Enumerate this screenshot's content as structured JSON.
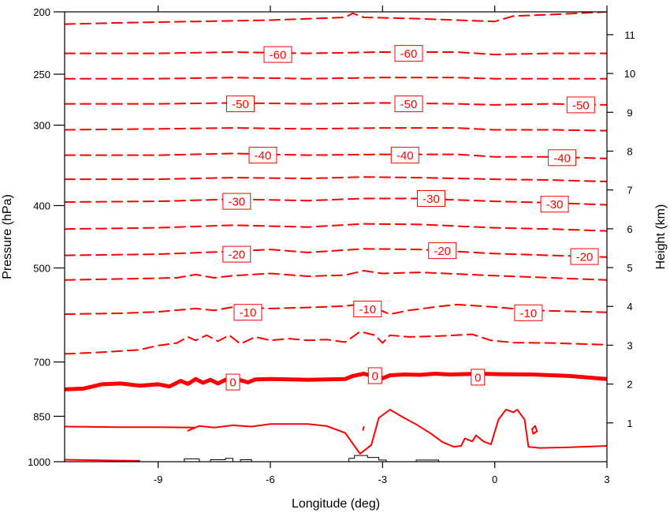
{
  "chart_data": {
    "type": "contour",
    "xlabel": "Longitude (deg)",
    "ylabel_left": "Pressure (hPa)",
    "ylabel_right": "Height (km)",
    "xlim": [
      -11.5,
      3.0
    ],
    "pressure_range": [
      200,
      1000
    ],
    "height_range_km": [
      0,
      12
    ],
    "x_ticks": [
      -9,
      -6,
      -3,
      0,
      3
    ],
    "x_tick_labels": [
      "-9",
      "-6",
      "-3",
      "0",
      "3"
    ],
    "left_ticks": [
      1000,
      850,
      700,
      500,
      400,
      300,
      250,
      200
    ],
    "left_tick_labels": [
      "1000",
      "850",
      "700",
      "500",
      "400",
      "300",
      "250",
      "200"
    ],
    "right_ticks": [
      1,
      2,
      3,
      4,
      5,
      6,
      7,
      8,
      9,
      10,
      11
    ],
    "right_tick_labels": [
      "1",
      "2",
      "3",
      "4",
      "5",
      "6",
      "7",
      "8",
      "9",
      "10",
      "11"
    ],
    "contour_color": "#ff0000",
    "terrain_color": "#000000",
    "contour_labels": [
      {
        "text": "-60",
        "x": -5.8,
        "p": 233
      },
      {
        "text": "-60",
        "x": -2.3,
        "p": 232
      },
      {
        "text": "-50",
        "x": -6.8,
        "p": 278
      },
      {
        "text": "-50",
        "x": -2.3,
        "p": 278
      },
      {
        "text": "-50",
        "x": 2.3,
        "p": 279
      },
      {
        "text": "-40",
        "x": -6.2,
        "p": 334
      },
      {
        "text": "-40",
        "x": -2.4,
        "p": 334
      },
      {
        "text": "-40",
        "x": 1.8,
        "p": 337
      },
      {
        "text": "-30",
        "x": -6.9,
        "p": 394
      },
      {
        "text": "-30",
        "x": -1.7,
        "p": 390
      },
      {
        "text": "-30",
        "x": 1.6,
        "p": 398
      },
      {
        "text": "-20",
        "x": -6.9,
        "p": 476
      },
      {
        "text": "-20",
        "x": -1.4,
        "p": 470
      },
      {
        "text": "-20",
        "x": 2.4,
        "p": 480
      },
      {
        "text": "-10",
        "x": -6.6,
        "p": 586
      },
      {
        "text": "-10",
        "x": -3.4,
        "p": 579
      },
      {
        "text": "-10",
        "x": 0.9,
        "p": 587
      },
      {
        "text": "0",
        "x": -7.0,
        "p": 752
      },
      {
        "text": "0",
        "x": -3.2,
        "p": 735
      },
      {
        "text": "0",
        "x": -0.45,
        "p": 739
      }
    ],
    "contour_lines": [
      {
        "level": -65,
        "style": "dashed",
        "width": 2,
        "points": [
          [
            -11.5,
            209
          ],
          [
            -10,
            208
          ],
          [
            -8,
            207
          ],
          [
            -6,
            206
          ],
          [
            -4,
            204
          ],
          [
            -3.8,
            201
          ],
          [
            -3.5,
            204
          ],
          [
            -2,
            205
          ],
          [
            -1,
            206
          ],
          [
            0,
            207
          ],
          [
            0.5,
            203
          ],
          [
            1.5,
            202
          ],
          [
            3,
            200
          ]
        ]
      },
      {
        "level": -60,
        "style": "dashed",
        "width": 2,
        "points": [
          [
            -11.5,
            232
          ],
          [
            -9,
            232
          ],
          [
            -7,
            231
          ],
          [
            -5,
            232
          ],
          [
            -3,
            231
          ],
          [
            -1,
            231
          ],
          [
            0,
            233
          ],
          [
            1.5,
            232
          ],
          [
            3,
            232
          ]
        ]
      },
      {
        "level": -55,
        "style": "dashed",
        "width": 2,
        "points": [
          [
            -11.5,
            254
          ],
          [
            -9,
            254
          ],
          [
            -7,
            253
          ],
          [
            -5,
            254
          ],
          [
            -3,
            253
          ],
          [
            -1,
            253
          ],
          [
            0,
            254
          ],
          [
            1.5,
            254
          ],
          [
            3,
            254
          ]
        ]
      },
      {
        "level": -50,
        "style": "dashed",
        "width": 2,
        "points": [
          [
            -11.5,
            278
          ],
          [
            -9,
            278
          ],
          [
            -7,
            277
          ],
          [
            -5,
            278
          ],
          [
            -3,
            277
          ],
          [
            -1,
            278
          ],
          [
            0,
            279
          ],
          [
            1.5,
            278
          ],
          [
            3,
            279
          ]
        ]
      },
      {
        "level": -45,
        "style": "dashed",
        "width": 2,
        "points": [
          [
            -11.5,
            305
          ],
          [
            -9,
            304
          ],
          [
            -7,
            303
          ],
          [
            -5,
            304
          ],
          [
            -3,
            303
          ],
          [
            -1,
            303
          ],
          [
            0,
            305
          ],
          [
            1.5,
            305
          ],
          [
            3,
            306
          ]
        ]
      },
      {
        "level": -40,
        "style": "dashed",
        "width": 2,
        "points": [
          [
            -11.5,
            334
          ],
          [
            -9,
            334
          ],
          [
            -7,
            332
          ],
          [
            -5,
            334
          ],
          [
            -3,
            333
          ],
          [
            -1,
            333
          ],
          [
            0,
            336
          ],
          [
            1.5,
            336
          ],
          [
            3,
            338
          ]
        ]
      },
      {
        "level": -35,
        "style": "dashed",
        "width": 2,
        "points": [
          [
            -11.5,
            364
          ],
          [
            -9,
            364
          ],
          [
            -7,
            362
          ],
          [
            -5,
            363
          ],
          [
            -3.5,
            361
          ],
          [
            -2,
            362
          ],
          [
            0,
            364
          ],
          [
            1.5,
            365
          ],
          [
            3,
            367
          ]
        ]
      },
      {
        "level": -30,
        "style": "dashed",
        "width": 2,
        "points": [
          [
            -11.5,
            395
          ],
          [
            -9,
            394
          ],
          [
            -7,
            391
          ],
          [
            -5,
            393
          ],
          [
            -3.5,
            390
          ],
          [
            -2,
            390
          ],
          [
            0,
            394
          ],
          [
            1.5,
            396
          ],
          [
            3,
            399
          ]
        ]
      },
      {
        "level": -25,
        "style": "dashed",
        "width": 2,
        "points": [
          [
            -11.5,
            435
          ],
          [
            -9,
            433
          ],
          [
            -7,
            429
          ],
          [
            -5,
            432
          ],
          [
            -3.5,
            427
          ],
          [
            -2,
            428
          ],
          [
            0,
            433
          ],
          [
            1.5,
            435
          ],
          [
            3,
            438
          ]
        ]
      },
      {
        "level": -20,
        "style": "dashed",
        "width": 2,
        "points": [
          [
            -11.5,
            478
          ],
          [
            -9,
            476
          ],
          [
            -7,
            471
          ],
          [
            -6,
            468
          ],
          [
            -5,
            473
          ],
          [
            -3.5,
            467
          ],
          [
            -2,
            468
          ],
          [
            0,
            475
          ],
          [
            1.5,
            478
          ],
          [
            3,
            481
          ]
        ]
      },
      {
        "level": -15,
        "style": "dashed",
        "width": 2,
        "points": [
          [
            -11.5,
            522
          ],
          [
            -10,
            520
          ],
          [
            -8.5,
            518
          ],
          [
            -8,
            512
          ],
          [
            -7.5,
            518
          ],
          [
            -7,
            514
          ],
          [
            -6,
            510
          ],
          [
            -5,
            515
          ],
          [
            -4,
            513
          ],
          [
            -3.5,
            505
          ],
          [
            -3,
            510
          ],
          [
            -2,
            508
          ],
          [
            0,
            514
          ],
          [
            1.5,
            518
          ],
          [
            3,
            522
          ]
        ]
      },
      {
        "level": -10,
        "style": "dashed",
        "width": 2,
        "points": [
          [
            -11.5,
            590
          ],
          [
            -10,
            588
          ],
          [
            -9,
            585
          ],
          [
            -8,
            578
          ],
          [
            -7.5,
            582
          ],
          [
            -7,
            575
          ],
          [
            -6,
            578
          ],
          [
            -5,
            576
          ],
          [
            -4,
            573
          ],
          [
            -3.5,
            568
          ],
          [
            -2.8,
            590
          ],
          [
            -2.3,
            582
          ],
          [
            -1.5,
            574
          ],
          [
            -1,
            570
          ],
          [
            0,
            575
          ],
          [
            1,
            582
          ],
          [
            2,
            584
          ],
          [
            3,
            586
          ]
        ]
      },
      {
        "level": -5,
        "style": "dashed",
        "width": 2,
        "points": [
          [
            -11.5,
            680
          ],
          [
            -10.5,
            676
          ],
          [
            -9.5,
            670
          ],
          [
            -9,
            660
          ],
          [
            -8.5,
            654
          ],
          [
            -8.2,
            640
          ],
          [
            -8,
            648
          ],
          [
            -7.7,
            636
          ],
          [
            -7.4,
            650
          ],
          [
            -7.1,
            636
          ],
          [
            -6.8,
            656
          ],
          [
            -6.4,
            640
          ],
          [
            -6,
            648
          ],
          [
            -5.5,
            644
          ],
          [
            -5,
            648
          ],
          [
            -4.5,
            646
          ],
          [
            -4,
            652
          ],
          [
            -3.6,
            628
          ],
          [
            -3.2,
            636
          ],
          [
            -3,
            654
          ],
          [
            -2.8,
            636
          ],
          [
            -2.3,
            640
          ],
          [
            -1.5,
            638
          ],
          [
            -0.6,
            634
          ],
          [
            -0.1,
            648
          ],
          [
            0.5,
            653
          ],
          [
            1.5,
            654
          ],
          [
            3,
            658
          ]
        ]
      },
      {
        "level": 0,
        "style": "solid",
        "width": 5,
        "points": [
          [
            -11.5,
            772
          ],
          [
            -11,
            770
          ],
          [
            -10.5,
            758
          ],
          [
            -10,
            756
          ],
          [
            -9.5,
            762
          ],
          [
            -9,
            758
          ],
          [
            -8.7,
            764
          ],
          [
            -8.4,
            749
          ],
          [
            -8.2,
            757
          ],
          [
            -8,
            744
          ],
          [
            -7.8,
            754
          ],
          [
            -7.6,
            746
          ],
          [
            -7.4,
            756
          ],
          [
            -7.2,
            746
          ],
          [
            -7,
            755
          ],
          [
            -6.8,
            747
          ],
          [
            -6.6,
            753
          ],
          [
            -6.4,
            745
          ],
          [
            -6,
            744
          ],
          [
            -5,
            746
          ],
          [
            -4,
            744
          ],
          [
            -3.8,
            736
          ],
          [
            -3.5,
            730
          ],
          [
            -3.2,
            738
          ],
          [
            -3,
            742
          ],
          [
            -2.8,
            734
          ],
          [
            -2.4,
            732
          ],
          [
            -2,
            733
          ],
          [
            -1.6,
            730
          ],
          [
            -1.2,
            732
          ],
          [
            -0.8,
            731
          ],
          [
            -0.4,
            730
          ],
          [
            0,
            731
          ],
          [
            1,
            732
          ],
          [
            2,
            736
          ],
          [
            3,
            744
          ]
        ]
      },
      {
        "level": 5,
        "style": "solid",
        "width": 2,
        "points": [
          [
            -11.5,
            882
          ],
          [
            -10,
            884
          ],
          [
            -9,
            884
          ],
          [
            -8,
            885
          ],
          [
            -8.2,
            895
          ],
          [
            -7.9,
            880
          ],
          [
            -7.5,
            885
          ],
          [
            -7,
            878
          ],
          [
            -6.5,
            882
          ],
          [
            -6,
            874
          ],
          [
            -5,
            874
          ],
          [
            -4.5,
            880
          ],
          [
            -4,
            902
          ],
          [
            -3.6,
            972
          ],
          [
            -3.3,
            942
          ],
          [
            -3.1,
            855
          ],
          [
            -2.8,
            830
          ],
          [
            -2.5,
            850
          ],
          [
            -2.1,
            875
          ],
          [
            -1.7,
            905
          ],
          [
            -1.4,
            932
          ],
          [
            -1.1,
            948
          ],
          [
            -0.9,
            945
          ],
          [
            -0.8,
            920
          ],
          [
            -0.6,
            930
          ],
          [
            -0.5,
            910
          ],
          [
            -0.3,
            930
          ],
          [
            -0.1,
            940
          ],
          [
            0.1,
            860
          ],
          [
            0.3,
            830
          ],
          [
            0.5,
            838
          ],
          [
            0.6,
            830
          ],
          [
            0.8,
            860
          ],
          [
            0.9,
            948
          ],
          [
            1.2,
            952
          ],
          [
            2,
            950
          ],
          [
            3,
            945
          ]
        ]
      },
      {
        "level": 5,
        "style": "solid",
        "width": 2,
        "points": [
          [
            1.0,
            890
          ],
          [
            1.08,
            880
          ],
          [
            1.13,
            897
          ],
          [
            1.03,
            905
          ],
          [
            1.0,
            890
          ]
        ]
      },
      {
        "level": 5,
        "style": "solid",
        "width": 2,
        "points": [
          [
            -3.5,
            883
          ],
          [
            -3.52,
            893
          ]
        ]
      },
      {
        "level": 10,
        "style": "solid",
        "width": 2,
        "points": [
          [
            -11.5,
            993
          ],
          [
            -10,
            996
          ],
          [
            -9.5,
            997
          ]
        ]
      }
    ],
    "terrain": [
      [
        -8.3,
        1000
      ],
      [
        -8.3,
        990
      ],
      [
        -7.9,
        990
      ],
      [
        -7.9,
        1000
      ],
      [
        -7.6,
        1000
      ],
      [
        -7.6,
        993
      ],
      [
        -7.2,
        993
      ],
      [
        -7.2,
        988
      ],
      [
        -7.0,
        988
      ],
      [
        -7.0,
        1000
      ],
      [
        -6.8,
        1000
      ],
      [
        -6.8,
        993
      ],
      [
        -6.5,
        993
      ],
      [
        -6.5,
        1000
      ],
      [
        -3.9,
        1000
      ],
      [
        -3.9,
        988
      ],
      [
        -3.75,
        988
      ],
      [
        -3.75,
        978
      ],
      [
        -3.4,
        978
      ],
      [
        -3.4,
        985
      ],
      [
        -3.1,
        985
      ],
      [
        -3.1,
        994
      ],
      [
        -2.9,
        994
      ],
      [
        -2.9,
        1000
      ],
      [
        -2.1,
        1000
      ],
      [
        -2.1,
        994
      ],
      [
        -1.5,
        994
      ],
      [
        -1.5,
        1000
      ]
    ]
  }
}
